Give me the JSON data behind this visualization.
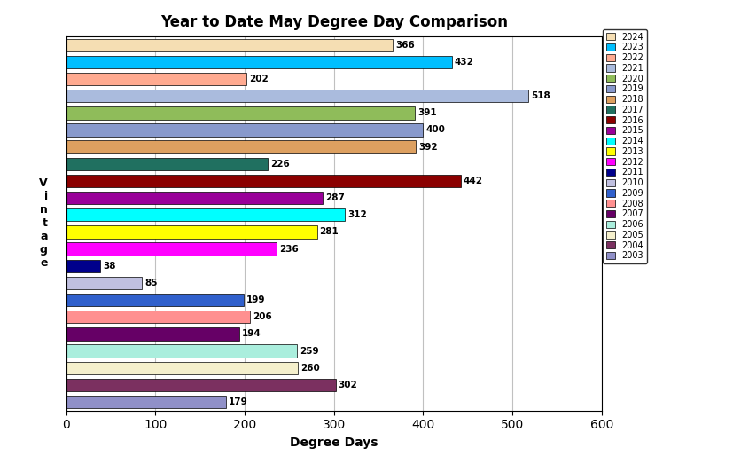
{
  "title": "Year to Date May Degree Day Comparison",
  "xlabel": "Degree Days",
  "ylabel": "V\ni\nn\nt\na\ng\ne",
  "years": [
    "2024",
    "2023",
    "2022",
    "2021",
    "2020",
    "2019",
    "2018",
    "2017",
    "2016",
    "2015",
    "2014",
    "2013",
    "2012",
    "2011",
    "2010",
    "2009",
    "2008",
    "2007",
    "2006",
    "2005",
    "2004",
    "2003"
  ],
  "values": [
    366,
    432,
    202,
    518,
    391,
    400,
    392,
    226,
    442,
    287,
    312,
    281,
    236,
    38,
    85,
    199,
    206,
    194,
    259,
    260,
    302,
    179
  ],
  "colors": [
    "#F5DEB3",
    "#00BFFF",
    "#FFAA90",
    "#AABBDD",
    "#8FBC5A",
    "#8899CC",
    "#DDA060",
    "#207060",
    "#8B0000",
    "#990099",
    "#00FFFF",
    "#FFFF00",
    "#FF00FF",
    "#00008B",
    "#C0C0E0",
    "#3060CC",
    "#FF9090",
    "#660066",
    "#AAEEDD",
    "#F5F0CC",
    "#7B3060",
    "#9090C8"
  ],
  "xlim": [
    0,
    600
  ],
  "xticks": [
    0,
    100,
    200,
    300,
    400,
    500,
    600
  ],
  "background_color": "#FFFFFF",
  "plot_bg_color": "#FFFFFF",
  "grid_color": "#C0C0C0",
  "figwidth": 8.28,
  "figheight": 5.14,
  "dpi": 100
}
